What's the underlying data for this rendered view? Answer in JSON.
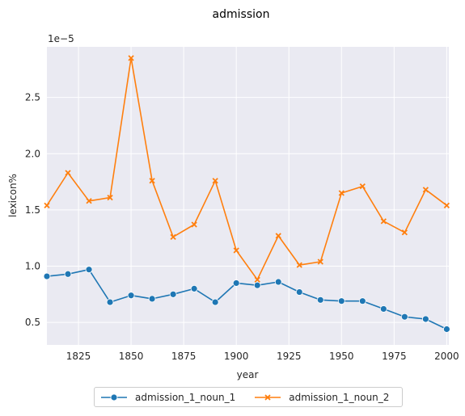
{
  "chart_data": {
    "type": "line",
    "title": "admission",
    "xlabel": "year",
    "ylabel": "lexicon%",
    "y_scale_label": "1e−5",
    "xlim": [
      1810,
      2001
    ],
    "ylim": [
      0.3,
      2.95
    ],
    "x_ticks": [
      1825,
      1850,
      1875,
      1900,
      1925,
      1950,
      1975,
      2000
    ],
    "y_ticks": [
      0.5,
      1.0,
      1.5,
      2.0,
      2.5
    ],
    "y_tick_labels": [
      "0.5",
      "1.0",
      "1.5",
      "2.0",
      "2.5"
    ],
    "grid": true,
    "legend_position": "bottom-center",
    "x": [
      1810,
      1820,
      1830,
      1840,
      1850,
      1860,
      1870,
      1880,
      1890,
      1900,
      1910,
      1920,
      1930,
      1940,
      1950,
      1960,
      1970,
      1980,
      1990,
      2000
    ],
    "series": [
      {
        "name": "admission_1_noun_1",
        "color": "#1f77b4",
        "marker": "circle",
        "values": [
          0.91,
          0.93,
          0.97,
          0.68,
          0.74,
          0.71,
          0.75,
          0.8,
          0.68,
          0.85,
          0.83,
          0.86,
          0.77,
          0.7,
          0.69,
          0.69,
          0.62,
          0.55,
          0.53,
          0.44
        ]
      },
      {
        "name": "admission_1_noun_2",
        "color": "#ff7f0e",
        "marker": "x",
        "values": [
          1.54,
          1.83,
          1.58,
          1.61,
          2.85,
          1.76,
          1.26,
          1.37,
          1.76,
          1.14,
          0.88,
          1.27,
          1.01,
          1.04,
          1.65,
          1.71,
          1.4,
          1.3,
          1.68,
          1.54
        ]
      }
    ]
  }
}
